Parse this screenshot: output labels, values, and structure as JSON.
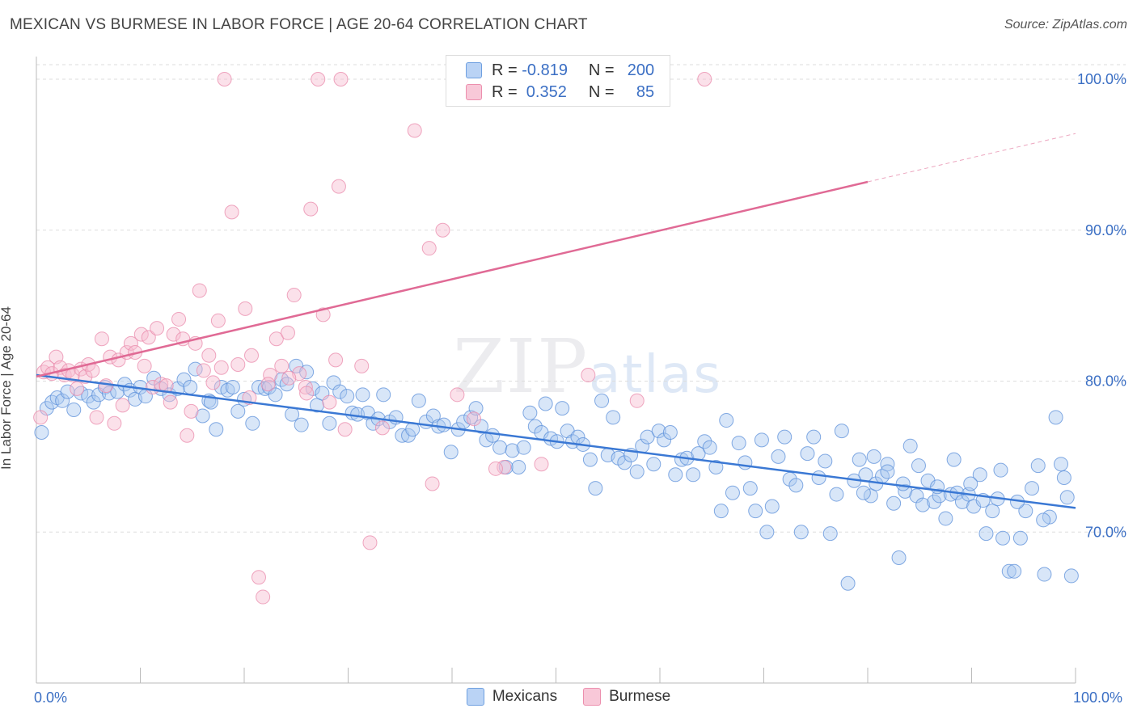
{
  "title": "MEXICAN VS BURMESE IN LABOR FORCE | AGE 20-64 CORRELATION CHART",
  "source": "Source: ZipAtlas.com",
  "watermark": {
    "zip": "ZIP",
    "atlas": "atlas"
  },
  "legend": {
    "rows": [
      {
        "r_label": "R =",
        "r_value": "-0.819",
        "n_label": "N =",
        "n_value": "200",
        "color": "#6fa0e0",
        "fill": "#bad3f5"
      },
      {
        "r_label": "R =",
        "r_value": " 0.352",
        "n_label": "N =",
        "n_value": "85",
        "color": "#ec8fae",
        "fill": "#f8c8d8"
      }
    ]
  },
  "bottom_legend": [
    "Mexicans",
    "Burmese"
  ],
  "colors": {
    "mexicans": "#3a78d4",
    "mexicans_fill": "#a9c7f0",
    "burmese": "#e06a95",
    "burmese_fill": "#f6bdd0",
    "axis_text": "#3b6fc4"
  },
  "chart_data": {
    "type": "scatter",
    "title": "MEXICAN VS BURMESE IN LABOR FORCE | AGE 20-64 CORRELATION CHART",
    "xlabel": "",
    "ylabel": "In Labor Force | Age 20-64",
    "xlim": [
      0,
      100
    ],
    "ylim": [
      60,
      101.5
    ],
    "x_tick_labels": [
      "0.0%",
      "100.0%"
    ],
    "y_tick_labels": [
      "70.0%",
      "80.0%",
      "90.0%",
      "100.0%"
    ],
    "y_ticks": [
      70,
      80,
      90,
      100
    ],
    "grid": true,
    "legend_position": "top-center",
    "series": [
      {
        "name": "Mexicans",
        "R": -0.819,
        "N": 200,
        "trend": {
          "x": [
            0,
            100
          ],
          "y": [
            80.4,
            71.6
          ]
        },
        "points": [
          [
            0.5,
            76.6
          ],
          [
            1,
            78.2
          ],
          [
            1.5,
            78.6
          ],
          [
            2,
            78.9
          ],
          [
            2.5,
            78.7
          ],
          [
            3,
            79.3
          ],
          [
            3.6,
            78.1
          ],
          [
            4.3,
            79.2
          ],
          [
            5,
            79.0
          ],
          [
            5.5,
            78.6
          ],
          [
            6,
            79.1
          ],
          [
            6.6,
            79.6
          ],
          [
            7,
            79.2
          ],
          [
            7.8,
            79.3
          ],
          [
            8.5,
            79.8
          ],
          [
            9,
            79.4
          ],
          [
            9.5,
            78.8
          ],
          [
            10,
            79.6
          ],
          [
            10.5,
            79.0
          ],
          [
            11.3,
            80.2
          ],
          [
            12,
            79.5
          ],
          [
            12.8,
            79.1
          ],
          [
            13.6,
            79.5
          ],
          [
            14.2,
            80.1
          ],
          [
            14.8,
            79.6
          ],
          [
            15.3,
            80.8
          ],
          [
            16,
            77.7
          ],
          [
            16.6,
            78.7
          ],
          [
            16.8,
            78.6
          ],
          [
            17.3,
            76.8
          ],
          [
            17.8,
            79.6
          ],
          [
            18.4,
            79.4
          ],
          [
            18.9,
            79.6
          ],
          [
            19.4,
            78.0
          ],
          [
            20,
            78.8
          ],
          [
            20.8,
            77.2
          ],
          [
            21.4,
            79.6
          ],
          [
            22,
            79.5
          ],
          [
            22.4,
            79.6
          ],
          [
            23,
            79.1
          ],
          [
            23.6,
            80.1
          ],
          [
            24.1,
            79.8
          ],
          [
            24.6,
            77.8
          ],
          [
            25,
            81.0
          ],
          [
            25.5,
            77.1
          ],
          [
            26,
            80.6
          ],
          [
            26.6,
            79.5
          ],
          [
            27,
            78.4
          ],
          [
            27.5,
            79.2
          ],
          [
            28.2,
            77.2
          ],
          [
            28.6,
            79.9
          ],
          [
            29.2,
            79.3
          ],
          [
            29.9,
            79.0
          ],
          [
            30.4,
            77.9
          ],
          [
            30.9,
            77.8
          ],
          [
            31.4,
            79.1
          ],
          [
            31.9,
            77.9
          ],
          [
            32.4,
            77.2
          ],
          [
            32.9,
            77.5
          ],
          [
            33.4,
            79.1
          ],
          [
            34,
            77.3
          ],
          [
            34.6,
            77.6
          ],
          [
            35.2,
            76.4
          ],
          [
            35.8,
            76.4
          ],
          [
            36.2,
            76.8
          ],
          [
            36.8,
            78.7
          ],
          [
            37.5,
            77.3
          ],
          [
            38.2,
            77.7
          ],
          [
            38.7,
            77.0
          ],
          [
            39.2,
            77.1
          ],
          [
            39.9,
            75.3
          ],
          [
            40.6,
            76.8
          ],
          [
            41.1,
            77.3
          ],
          [
            41.8,
            77.6
          ],
          [
            42.3,
            78.2
          ],
          [
            42.8,
            77.0
          ],
          [
            43.3,
            76.1
          ],
          [
            43.9,
            76.4
          ],
          [
            44.6,
            75.6
          ],
          [
            45.2,
            74.3
          ],
          [
            45.8,
            75.4
          ],
          [
            46.4,
            74.3
          ],
          [
            46.9,
            75.6
          ],
          [
            47.5,
            77.9
          ],
          [
            48,
            77.0
          ],
          [
            48.6,
            76.6
          ],
          [
            49,
            78.5
          ],
          [
            49.5,
            76.2
          ],
          [
            50.1,
            76.0
          ],
          [
            50.6,
            78.2
          ],
          [
            51.1,
            76.7
          ],
          [
            51.6,
            76.0
          ],
          [
            52.1,
            76.3
          ],
          [
            52.6,
            75.8
          ],
          [
            53.3,
            74.8
          ],
          [
            53.8,
            72.9
          ],
          [
            54.4,
            78.7
          ],
          [
            55,
            75.1
          ],
          [
            55.5,
            77.6
          ],
          [
            56,
            74.9
          ],
          [
            56.6,
            74.6
          ],
          [
            57.2,
            75.1
          ],
          [
            57.8,
            74.0
          ],
          [
            58.3,
            75.7
          ],
          [
            58.8,
            76.3
          ],
          [
            59.4,
            74.5
          ],
          [
            59.9,
            76.7
          ],
          [
            60.4,
            76.1
          ],
          [
            61,
            76.6
          ],
          [
            61.5,
            73.8
          ],
          [
            62.1,
            74.8
          ],
          [
            62.6,
            74.9
          ],
          [
            63.2,
            73.8
          ],
          [
            63.7,
            75.2
          ],
          [
            64.3,
            76.0
          ],
          [
            64.8,
            75.6
          ],
          [
            65.4,
            74.3
          ],
          [
            65.9,
            71.4
          ],
          [
            66.4,
            77.4
          ],
          [
            67,
            72.6
          ],
          [
            67.6,
            75.9
          ],
          [
            68.2,
            74.6
          ],
          [
            68.7,
            72.9
          ],
          [
            69.2,
            71.4
          ],
          [
            69.8,
            76.1
          ],
          [
            70.3,
            70.0
          ],
          [
            70.8,
            71.7
          ],
          [
            71.4,
            75.0
          ],
          [
            72,
            76.3
          ],
          [
            72.5,
            73.5
          ],
          [
            73.1,
            73.1
          ],
          [
            73.6,
            70.0
          ],
          [
            74.2,
            75.2
          ],
          [
            74.8,
            76.3
          ],
          [
            75.3,
            73.6
          ],
          [
            75.9,
            74.7
          ],
          [
            76.4,
            69.9
          ],
          [
            77,
            72.5
          ],
          [
            77.5,
            76.7
          ],
          [
            78.1,
            66.6
          ],
          [
            78.7,
            73.4
          ],
          [
            79.2,
            74.8
          ],
          [
            79.8,
            73.8
          ],
          [
            80.3,
            72.4
          ],
          [
            80.8,
            73.2
          ],
          [
            81.4,
            73.7
          ],
          [
            81.9,
            74.5
          ],
          [
            82.5,
            71.9
          ],
          [
            83,
            68.3
          ],
          [
            83.6,
            72.7
          ],
          [
            84.1,
            75.7
          ],
          [
            84.7,
            72.4
          ],
          [
            85.3,
            71.8
          ],
          [
            85.8,
            73.4
          ],
          [
            86.4,
            72.0
          ],
          [
            86.9,
            72.4
          ],
          [
            87.5,
            70.9
          ],
          [
            88,
            72.5
          ],
          [
            88.6,
            72.6
          ],
          [
            89.1,
            72.0
          ],
          [
            89.7,
            72.5
          ],
          [
            90.2,
            71.7
          ],
          [
            90.8,
            73.8
          ],
          [
            91.4,
            69.9
          ],
          [
            92,
            71.4
          ],
          [
            92.5,
            72.2
          ],
          [
            93,
            69.6
          ],
          [
            93.6,
            67.4
          ],
          [
            94.1,
            67.4
          ],
          [
            94.7,
            69.6
          ],
          [
            95.2,
            71.4
          ],
          [
            95.8,
            72.9
          ],
          [
            96.4,
            74.4
          ],
          [
            97,
            67.2
          ],
          [
            97.5,
            71.0
          ],
          [
            98.1,
            77.6
          ],
          [
            98.6,
            74.5
          ],
          [
            99.2,
            72.3
          ],
          [
            99.6,
            67.1
          ],
          [
            98.9,
            73.6
          ],
          [
            96.9,
            70.8
          ],
          [
            94.4,
            72.0
          ],
          [
            92.8,
            74.1
          ],
          [
            91.1,
            72.1
          ],
          [
            89.9,
            73.2
          ],
          [
            88.3,
            74.8
          ],
          [
            86.7,
            73.0
          ],
          [
            84.9,
            74.4
          ],
          [
            83.4,
            73.2
          ],
          [
            81.9,
            74.0
          ],
          [
            80.6,
            75.0
          ],
          [
            79.6,
            72.6
          ]
        ]
      },
      {
        "name": "Burmese",
        "R": 0.352,
        "N": 85,
        "trend": {
          "x": [
            0,
            80
          ],
          "y": [
            80.3,
            93.2
          ]
        },
        "trend_dashed": {
          "x": [
            80,
            100
          ],
          "y": [
            93.2,
            96.4
          ]
        },
        "points": [
          [
            0.4,
            77.6
          ],
          [
            0.7,
            80.6
          ],
          [
            1.1,
            80.9
          ],
          [
            1.5,
            80.5
          ],
          [
            1.9,
            81.6
          ],
          [
            2.3,
            80.9
          ],
          [
            2.7,
            80.4
          ],
          [
            3.1,
            80.7
          ],
          [
            3.5,
            80.4
          ],
          [
            3.9,
            79.5
          ],
          [
            4.3,
            80.8
          ],
          [
            4.7,
            80.3
          ],
          [
            5,
            81.1
          ],
          [
            5.4,
            80.7
          ],
          [
            5.8,
            77.6
          ],
          [
            6.3,
            82.8
          ],
          [
            6.7,
            79.7
          ],
          [
            7.1,
            81.6
          ],
          [
            7.5,
            77.2
          ],
          [
            7.9,
            81.4
          ],
          [
            8.3,
            78.4
          ],
          [
            8.7,
            81.9
          ],
          [
            9.1,
            82.5
          ],
          [
            9.5,
            81.9
          ],
          [
            10.1,
            83.1
          ],
          [
            10.4,
            81.0
          ],
          [
            10.8,
            82.9
          ],
          [
            11.2,
            79.6
          ],
          [
            11.6,
            83.5
          ],
          [
            12,
            79.8
          ],
          [
            12.5,
            79.7
          ],
          [
            12.9,
            78.6
          ],
          [
            13.2,
            83.1
          ],
          [
            13.7,
            84.1
          ],
          [
            14.1,
            82.8
          ],
          [
            14.5,
            76.4
          ],
          [
            14.9,
            78.0
          ],
          [
            15.3,
            82.5
          ],
          [
            15.7,
            86.0
          ],
          [
            16.1,
            80.7
          ],
          [
            16.6,
            81.7
          ],
          [
            17,
            79.9
          ],
          [
            17.5,
            84.0
          ],
          [
            18.1,
            100.0
          ],
          [
            18.8,
            91.2
          ],
          [
            19.4,
            81.1
          ],
          [
            20.1,
            84.8
          ],
          [
            20.7,
            81.7
          ],
          [
            21.4,
            67.0
          ],
          [
            21.8,
            65.7
          ],
          [
            22.5,
            80.4
          ],
          [
            23.1,
            82.8
          ],
          [
            23.6,
            81.0
          ],
          [
            24.2,
            83.2
          ],
          [
            24.8,
            85.7
          ],
          [
            25.3,
            80.5
          ],
          [
            25.9,
            79.6
          ],
          [
            26.4,
            91.4
          ],
          [
            27.1,
            100.0
          ],
          [
            27.6,
            84.4
          ],
          [
            28.2,
            78.6
          ],
          [
            29.3,
            100.0
          ],
          [
            29.1,
            92.9
          ],
          [
            31.3,
            81.0
          ],
          [
            32.1,
            69.3
          ],
          [
            36.4,
            96.6
          ],
          [
            37.8,
            88.8
          ],
          [
            39.1,
            90.0
          ],
          [
            40.5,
            79.1
          ],
          [
            42.1,
            77.5
          ],
          [
            45.0,
            74.3
          ],
          [
            57.8,
            78.7
          ],
          [
            64.3,
            100.0
          ],
          [
            28.8,
            81.4
          ],
          [
            20.5,
            78.9
          ],
          [
            26.0,
            79.2
          ],
          [
            22.3,
            79.8
          ],
          [
            17.8,
            80.9
          ],
          [
            24.3,
            80.2
          ],
          [
            29.7,
            76.8
          ],
          [
            33.3,
            76.9
          ],
          [
            38.1,
            73.2
          ],
          [
            44.2,
            74.2
          ],
          [
            48.6,
            74.5
          ],
          [
            53.1,
            80.4
          ]
        ]
      }
    ]
  }
}
